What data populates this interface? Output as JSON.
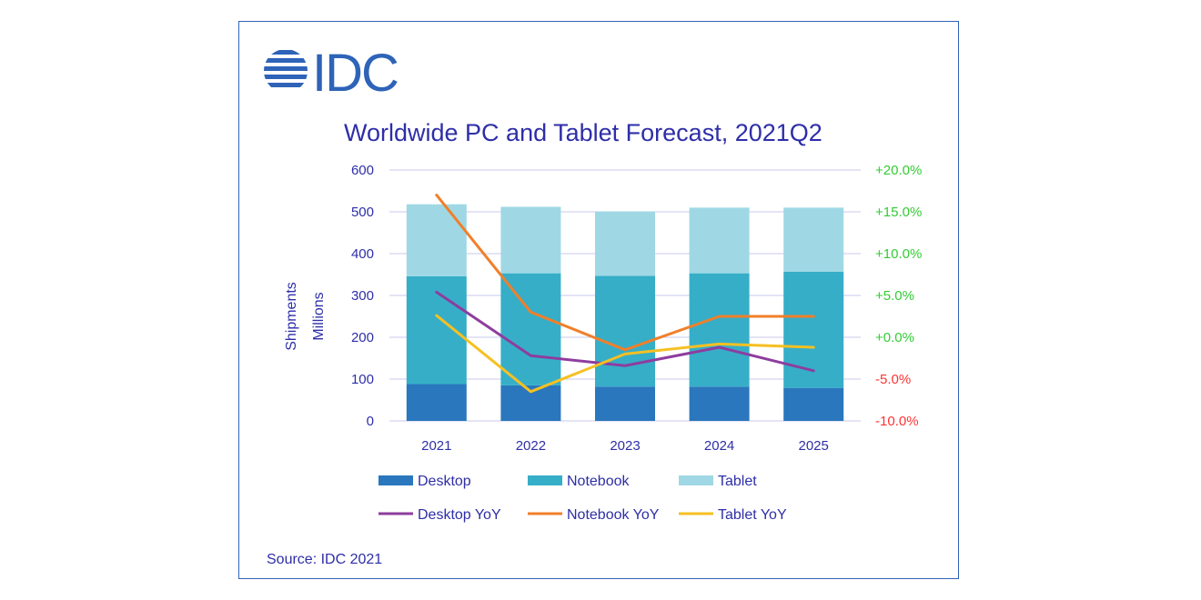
{
  "brand": {
    "logo_text": "IDC",
    "logo_color": "#2e63b8"
  },
  "source": "Source: IDC 2021",
  "chart_data": {
    "type": "bar",
    "stacked": true,
    "title": "Worldwide PC and Tablet Forecast, 2021Q2",
    "ylabel": [
      "Shipments",
      "Millions"
    ],
    "categories": [
      "2021",
      "2022",
      "2023",
      "2024",
      "2025"
    ],
    "ylim": [
      0,
      600
    ],
    "yticks": [
      0,
      100,
      200,
      300,
      400,
      500,
      600
    ],
    "y2lim": [
      -10,
      20
    ],
    "y2ticks": [
      {
        "value": -10,
        "label": "-10.0%"
      },
      {
        "value": -5,
        "label": "-5.0%"
      },
      {
        "value": 0,
        "label": "+0.0%"
      },
      {
        "value": 5,
        "label": "+5.0%"
      },
      {
        "value": 10,
        "label": "+10.0%"
      },
      {
        "value": 15,
        "label": "+15.0%"
      },
      {
        "value": 20,
        "label": "+20.0%"
      }
    ],
    "y2_positive_color": "#33cc33",
    "y2_negative_color": "#ff3333",
    "grid": true,
    "series": [
      {
        "name": "Desktop",
        "kind": "bar",
        "color": "#2a77bd",
        "values": [
          88,
          85,
          82,
          82,
          79
        ]
      },
      {
        "name": "Notebook",
        "kind": "bar",
        "color": "#36aec8",
        "values": [
          258,
          268,
          265,
          271,
          278
        ]
      },
      {
        "name": "Tablet",
        "kind": "bar",
        "color": "#9fd8e4",
        "values": [
          172,
          159,
          154,
          157,
          153
        ]
      },
      {
        "name": "Desktop YoY",
        "kind": "line",
        "axis": "right",
        "color": "#8e3d9e",
        "values": [
          5.4,
          -2.2,
          -3.4,
          -1.2,
          -4.0
        ]
      },
      {
        "name": "Notebook YoY",
        "kind": "line",
        "axis": "right",
        "color": "#f07f2a",
        "values": [
          17.0,
          3.0,
          -1.5,
          2.5,
          2.5
        ]
      },
      {
        "name": "Tablet YoY",
        "kind": "line",
        "axis": "right",
        "color": "#f5c022",
        "values": [
          2.6,
          -6.5,
          -2.0,
          -0.8,
          -1.2
        ]
      }
    ],
    "legend_placement": "bottom",
    "axis_text_color": "#2e2ea8",
    "gridline_color": "#c9c9ee"
  }
}
